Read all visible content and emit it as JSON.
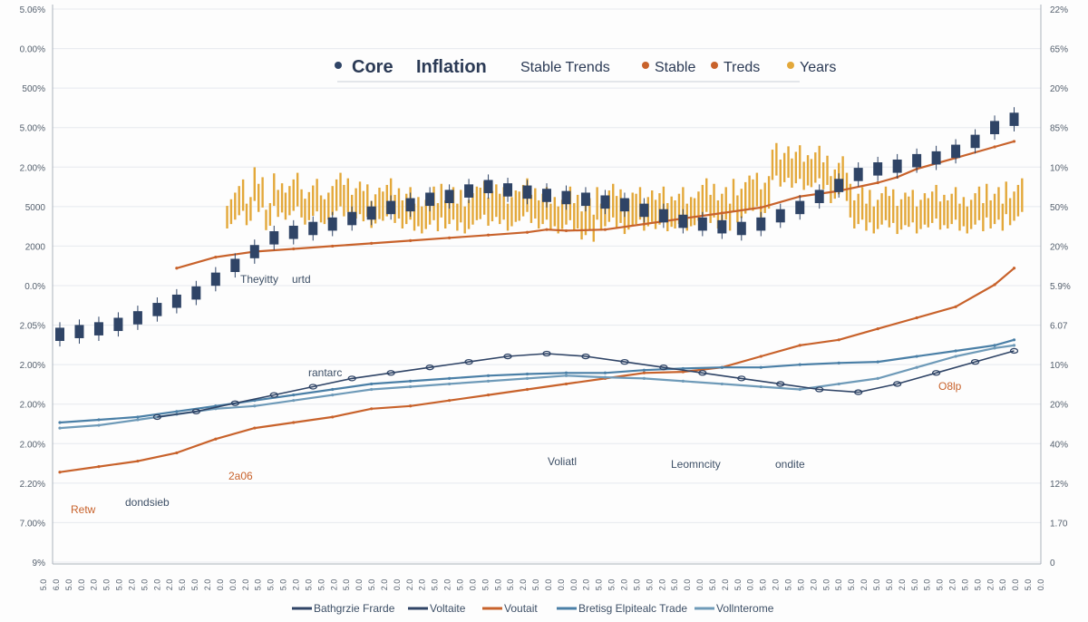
{
  "chart_data": {
    "type": "line",
    "title": "Core",
    "title_suffix": "Inflation",
    "subtitle": "Stable Trends",
    "legend_top": [
      {
        "label": "Stable",
        "color": "#c8622b"
      },
      {
        "label": "Treds",
        "color": "#c8622b"
      },
      {
        "label": "Years",
        "color": "#e3a83a"
      }
    ],
    "legend_top_dot_color": "#2f4466",
    "y_left_ticks": [
      "5.06%",
      "0.00%",
      "500%",
      "5.00%",
      "2.00%",
      "5000",
      "2000",
      "0.0%",
      "2.05%",
      "2.00%",
      "2.00%",
      "2.00%",
      "2.20%",
      "7.00%",
      "9%"
    ],
    "y_right_ticks": [
      "22%",
      "65%",
      "20%",
      "85%",
      "10%",
      "50%",
      "20%",
      "5.9%",
      "6.07",
      "10%",
      "20%",
      "40%",
      "12%",
      "1.70",
      "0"
    ],
    "x_ticks": [
      "5.0",
      "6.0",
      "5.0",
      "0.0",
      "2.0",
      "5.0",
      "5.0",
      "2.0",
      "5.0",
      "2.0",
      "2.0",
      "5.0",
      "5.0",
      "2.0",
      "0.0",
      "0.0",
      "2.0",
      "5.0",
      "5.0",
      "5.0",
      "2.0",
      "5.0",
      "5.0",
      "2.0",
      "5.0",
      "0.0",
      "5.0",
      "2.0",
      "0.0",
      "2.0",
      "2.0",
      "5.0",
      "2.0",
      "5.0",
      "0.0",
      "5.0",
      "5.0",
      "5.0",
      "2.0",
      "5.0",
      "0.0",
      "0.0",
      "0.0",
      "2.0",
      "5.0",
      "5.0",
      "2.0",
      "5.0",
      "5.0",
      "2.0",
      "5.0",
      "0.0",
      "0.0",
      "5.0",
      "2.0",
      "5.0",
      "0.0",
      "5.0",
      "2.0",
      "5.0",
      "5.0",
      "2.0",
      "5.0",
      "5.0",
      "5.0",
      "2.0",
      "5.0",
      "5.0",
      "2.0",
      "5.0",
      "5.0",
      "5.0",
      "2.0",
      "5.0",
      "5.0",
      "2.0",
      "5.0",
      "0.0",
      "5.0",
      "0.0"
    ],
    "y_range": [
      0,
      100
    ],
    "grid": true,
    "legend_bottom": [
      {
        "label": "Bathgrzie Frarde",
        "color": "#2f4466"
      },
      {
        "label": "Voltaite",
        "color": "#2f4466"
      },
      {
        "label": "Voutait",
        "color": "#c8622b"
      },
      {
        "label": "Bretisg Elpitealc Trade",
        "color": "#4a7fa6"
      },
      {
        "label": "Vollnterome",
        "color": "#6e9ab8"
      }
    ],
    "annotations": [
      {
        "text": "Theyitty",
        "color": "#3d4f66"
      },
      {
        "text": "urtd",
        "color": "#3d4f66"
      },
      {
        "text": "rantarc",
        "color": "#3d4f66"
      },
      {
        "text": "2a06",
        "color": "#c8622b"
      },
      {
        "text": "dondsieb",
        "color": "#3d4f66"
      },
      {
        "text": "Retw",
        "color": "#c8622b"
      },
      {
        "text": "Voliatl",
        "color": "#3d4f66"
      },
      {
        "text": "Leomncity",
        "color": "#3d4f66"
      },
      {
        "text": "ondite",
        "color": "#3d4f66"
      },
      {
        "text": "O8lp",
        "color": "#c8622b"
      }
    ],
    "series": [
      {
        "name": "Bathgrzie Frarde",
        "kind": "candle",
        "color": "#2f4466",
        "x": [
          0,
          2,
          4,
          6,
          8,
          10,
          12,
          14,
          16,
          18,
          20,
          22,
          24,
          26,
          28,
          30,
          32,
          34,
          36,
          38,
          40,
          42,
          44,
          46,
          48,
          50,
          52,
          54,
          56,
          58,
          60,
          62,
          64,
          66,
          68,
          70,
          72,
          74,
          76,
          78,
          80,
          82,
          84,
          86,
          88,
          90,
          92,
          94,
          96,
          98
        ],
        "values": [
          41,
          41.5,
          42,
          42.8,
          44,
          45.5,
          47,
          48.5,
          51,
          53.5,
          56,
          58.5,
          59.5,
          60.2,
          61,
          62,
          63,
          64,
          64.5,
          65.5,
          66,
          67,
          67.8,
          67.2,
          66.8,
          66.2,
          65.8,
          65.5,
          65,
          64.5,
          63.5,
          62.5,
          61.5,
          61,
          60.5,
          60.2,
          61,
          62.5,
          64,
          66,
          68,
          70,
          71,
          71.5,
          72.5,
          73,
          74.2,
          76,
          78.5,
          80
        ]
      },
      {
        "name": "Years",
        "kind": "bars",
        "color": "#e3a83a",
        "x": [
          18,
          20,
          22,
          24,
          26,
          28,
          30,
          32,
          34,
          36,
          38,
          40,
          42,
          44,
          46,
          48,
          50,
          52,
          54,
          56,
          58,
          60,
          62,
          64,
          66,
          68,
          70,
          72,
          74,
          76,
          78,
          80,
          82,
          84,
          86,
          88,
          90,
          92,
          94,
          96,
          98
        ],
        "values": [
          66,
          67,
          66.5,
          66,
          65.5,
          66,
          65,
          64.5,
          65,
          64,
          63.5,
          64,
          63.5,
          64.5,
          64,
          65,
          64,
          63.5,
          62,
          64,
          63,
          64,
          63.5,
          64,
          65,
          64,
          65.5,
          66,
          72,
          71,
          71.5,
          69,
          64,
          63.5,
          63,
          63.5,
          63.8,
          64,
          63.5,
          64,
          65
        ]
      },
      {
        "name": "Voutait",
        "kind": "line",
        "color": "#c8622b",
        "x": [
          0,
          4,
          8,
          12,
          16,
          20,
          24,
          28,
          32,
          36,
          40,
          44,
          48,
          52,
          56,
          60,
          64,
          68,
          72,
          76,
          80,
          84,
          88,
          92,
          96,
          98
        ],
        "values": [
          16,
          17,
          18,
          19.5,
          22,
          24,
          25,
          26,
          27.5,
          28,
          29,
          30,
          31,
          32,
          33,
          34,
          34.2,
          35,
          37,
          39,
          40,
          42,
          44,
          46,
          50,
          53
        ]
      },
      {
        "name": "Voltaite",
        "kind": "line",
        "color": "#c8622b",
        "x": [
          12,
          16,
          20,
          24,
          28,
          32,
          36,
          40,
          44,
          48,
          50,
          52,
          56,
          60,
          64,
          68,
          72,
          76,
          80,
          84,
          86,
          88,
          92,
          96,
          98
        ],
        "values": [
          53,
          55,
          56,
          56.5,
          57,
          57.5,
          58,
          58.5,
          59,
          59.5,
          60,
          59.8,
          60,
          61,
          62,
          63,
          64,
          66,
          67,
          68.5,
          69.5,
          71,
          73,
          75,
          76
        ]
      },
      {
        "name": "Bretisg Elpitealc Trade",
        "kind": "line",
        "color": "#4a7fa6",
        "x": [
          0,
          4,
          8,
          12,
          16,
          20,
          24,
          28,
          32,
          36,
          40,
          44,
          48,
          52,
          56,
          60,
          64,
          68,
          72,
          76,
          80,
          84,
          88,
          92,
          96,
          98
        ],
        "values": [
          25,
          25.5,
          26,
          27,
          28,
          29,
          30,
          31,
          32,
          32.5,
          33,
          33.5,
          33.8,
          34,
          34,
          34.5,
          34.8,
          35,
          35,
          35.5,
          35.8,
          36,
          37,
          38,
          39,
          40
        ]
      },
      {
        "name": "Vollnterome",
        "kind": "line",
        "color": "#6e9ab8",
        "x": [
          0,
          4,
          8,
          12,
          16,
          20,
          24,
          28,
          32,
          36,
          40,
          44,
          48,
          52,
          56,
          60,
          64,
          68,
          72,
          76,
          80,
          84,
          88,
          92,
          96,
          98
        ],
        "values": [
          24,
          24.5,
          25.5,
          26.5,
          27.5,
          28,
          29,
          30,
          31,
          31.5,
          32,
          32.5,
          33,
          33.5,
          33.2,
          33,
          32.5,
          32,
          31.5,
          31,
          32,
          33,
          35,
          37,
          38.5,
          39
        ]
      },
      {
        "name": "Bathgrzie Frarde",
        "kind": "chain",
        "color": "#2f4466",
        "x": [
          10,
          14,
          18,
          22,
          26,
          30,
          34,
          38,
          42,
          46,
          50,
          54,
          58,
          62,
          66,
          70,
          74,
          78,
          82,
          86,
          90,
          94,
          98
        ],
        "values": [
          26,
          27,
          28.5,
          30,
          31.5,
          33,
          34,
          35,
          36,
          37,
          37.5,
          37,
          36,
          35,
          34,
          33,
          32,
          31,
          30.5,
          32,
          34,
          36,
          38
        ]
      }
    ]
  }
}
